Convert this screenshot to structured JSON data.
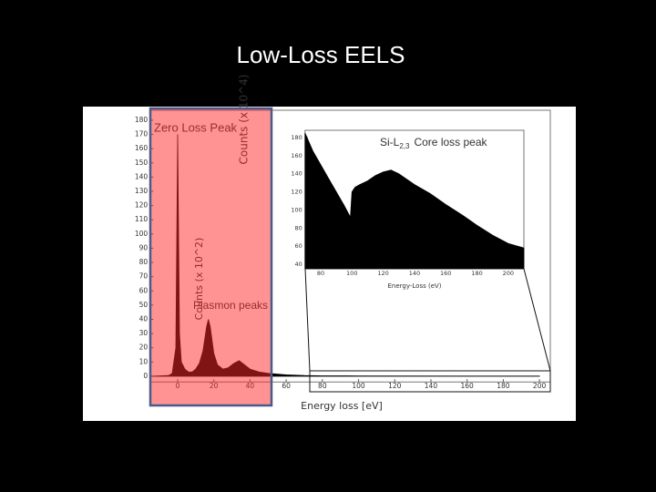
{
  "title": "Low-Loss EELS",
  "chart_data": [
    {
      "type": "area",
      "xlabel": "Energy loss [eV]",
      "ylabel": "Counts (x 10^4)",
      "annotations": [
        "Zero Loss Peak",
        "Plasmon peaks"
      ],
      "color": "#000000",
      "x": [
        -15,
        -5,
        -3,
        -1,
        0,
        1,
        2,
        4,
        6,
        8,
        10,
        12,
        14,
        16,
        17,
        18,
        20,
        22,
        25,
        28,
        31,
        34,
        37,
        40,
        45,
        50,
        60,
        70,
        80,
        100,
        200
      ],
      "values": [
        0,
        0.5,
        2,
        20,
        170,
        30,
        10,
        5,
        3,
        3,
        5,
        9,
        18,
        35,
        40,
        35,
        16,
        8,
        5,
        6,
        9,
        11,
        8,
        5,
        3,
        2,
        1,
        0.5,
        0.3,
        0.2,
        0.1
      ],
      "xlim": [
        -15,
        206
      ],
      "ylim": [
        -4,
        187
      ],
      "xticks": [
        0,
        20,
        40,
        60,
        80,
        100,
        120,
        140,
        160,
        180,
        200
      ],
      "yticks": [
        0,
        10,
        20,
        30,
        40,
        50,
        60,
        70,
        80,
        90,
        100,
        110,
        120,
        130,
        140,
        150,
        160,
        170,
        180
      ]
    },
    {
      "type": "area",
      "xlabel": "Energy-Loss (eV)",
      "ylabel": "Counts (x 10^2)",
      "annotations": [
        "Si-L",
        "2,3",
        "Core loss peak"
      ],
      "color": "#000000",
      "x": [
        70,
        75,
        80,
        85,
        90,
        95,
        99,
        100,
        102,
        105,
        110,
        115,
        120,
        125,
        130,
        140,
        150,
        160,
        170,
        180,
        190,
        200,
        210
      ],
      "values": [
        185,
        165,
        150,
        135,
        120,
        105,
        92,
        120,
        125,
        128,
        132,
        138,
        142,
        144,
        140,
        128,
        118,
        106,
        95,
        83,
        72,
        63,
        58
      ],
      "xlim": [
        70,
        210
      ],
      "ylim": [
        35,
        188
      ],
      "xticks": [
        80,
        100,
        120,
        140,
        160,
        180,
        200
      ],
      "yticks": [
        40,
        60,
        80,
        100,
        120,
        140,
        160,
        180
      ]
    }
  ]
}
